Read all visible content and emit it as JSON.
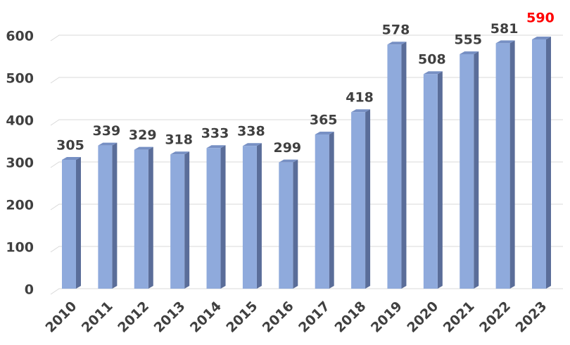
{
  "chart_data": {
    "type": "bar3d",
    "categories": [
      "2010",
      "2011",
      "2012",
      "2013",
      "2014",
      "2015",
      "2016",
      "2017",
      "2018",
      "2019",
      "2020",
      "2021",
      "2022",
      "2023"
    ],
    "values": [
      305,
      339,
      329,
      318,
      333,
      338,
      299,
      365,
      418,
      578,
      508,
      555,
      581,
      590
    ],
    "label_colors": [
      "#404040",
      "#404040",
      "#404040",
      "#404040",
      "#404040",
      "#404040",
      "#404040",
      "#404040",
      "#404040",
      "#404040",
      "#404040",
      "#404040",
      "#404040",
      "#ff0000"
    ],
    "color": "#8faadc",
    "ylim": [
      0,
      600
    ],
    "yticks": [
      0,
      100,
      200,
      300,
      400,
      500,
      600
    ],
    "grid": true
  }
}
